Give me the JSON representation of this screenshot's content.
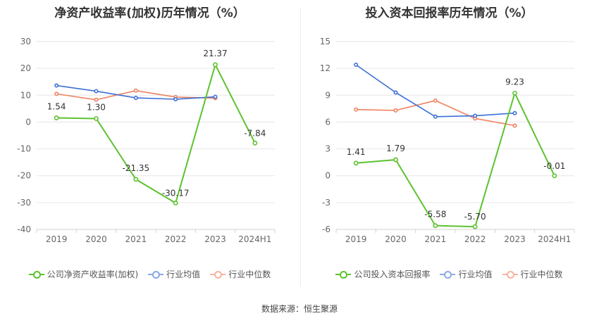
{
  "source": "数据来源：恒生聚源",
  "colors": {
    "company": "#5cc22f",
    "avg": "#3d6fd8",
    "median": "#f08260"
  },
  "chart_data": [
    {
      "type": "line",
      "title": "净资产收益率(加权)历年情况（%）",
      "categories": [
        "2019",
        "2020",
        "2021",
        "2022",
        "2023",
        "2024H1"
      ],
      "ylim": [
        -40,
        30
      ],
      "yticks": [
        30,
        20,
        10,
        0,
        -10,
        -20,
        -30,
        -40
      ],
      "grid": true,
      "legend_position": "bottom",
      "series": [
        {
          "name": "公司净资产收益率(加权)",
          "key": "company",
          "values": [
            1.54,
            1.3,
            -21.35,
            -30.17,
            21.37,
            -7.84
          ],
          "labels": [
            "1.54",
            "1.30",
            "-21.35",
            "-30.17",
            "21.37",
            "-7.84"
          ]
        },
        {
          "name": "行业均值",
          "key": "avg",
          "values": [
            13.6,
            11.5,
            9.0,
            8.5,
            9.4,
            null
          ]
        },
        {
          "name": "行业中位数",
          "key": "median",
          "values": [
            10.5,
            8.3,
            11.7,
            9.3,
            8.9,
            null
          ]
        }
      ]
    },
    {
      "type": "line",
      "title": "投入资本回报率历年情况（%）",
      "categories": [
        "2019",
        "2020",
        "2021",
        "2022",
        "2023",
        "2024H1"
      ],
      "ylim": [
        -6,
        15
      ],
      "yticks": [
        15,
        12,
        9,
        6,
        3,
        0,
        -3,
        -6
      ],
      "grid": true,
      "legend_position": "bottom",
      "series": [
        {
          "name": "公司投入资本回报率",
          "key": "company",
          "values": [
            1.41,
            1.79,
            -5.58,
            -5.7,
            9.23,
            -0.01
          ],
          "labels": [
            "1.41",
            "1.79",
            "-5.58",
            "-5.70",
            "9.23",
            "-0.01"
          ]
        },
        {
          "name": "行业均值",
          "key": "avg",
          "values": [
            12.4,
            9.3,
            6.6,
            6.7,
            7.0,
            null
          ]
        },
        {
          "name": "行业中位数",
          "key": "median",
          "values": [
            7.4,
            7.3,
            8.4,
            6.4,
            5.6,
            null
          ]
        }
      ]
    }
  ]
}
